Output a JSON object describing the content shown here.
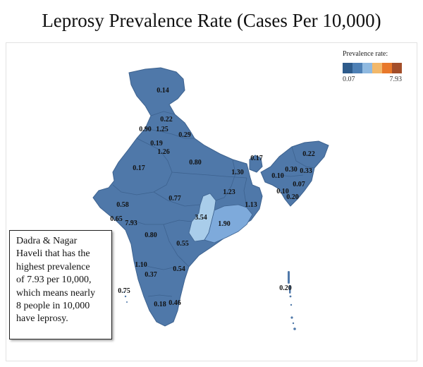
{
  "title": "Leprosy Prevalence Rate (Cases Per 10,000)",
  "legend": {
    "title": "Prevalence rate:",
    "min_label": "0.07",
    "max_label": "7.93",
    "colors": [
      "#2e5b8b",
      "#4e80b5",
      "#8fb9e0",
      "#f2b86a",
      "#e8782a",
      "#a34e2a"
    ]
  },
  "annotation": {
    "lines": [
      "Dadra & Nagar",
      "Haveli that has the",
      "highest prevalence",
      "of 7.93 per 10,000,",
      "which means nearly",
      "8 people in 10,000",
      "have leprosy."
    ]
  },
  "map_colors": {
    "base": "#4f78a9",
    "border": "#3d628f",
    "chhattisgarh": "#a9cdea",
    "odisha": "#7eaadb"
  },
  "regions": [
    {
      "name": "Jammu and Kashmir",
      "value": "0.14"
    },
    {
      "name": "Himachal Pradesh",
      "value": "0.22"
    },
    {
      "name": "Punjab",
      "value": "0.90"
    },
    {
      "name": "Chandigarh",
      "value": "1.25"
    },
    {
      "name": "Uttarakhand",
      "value": "0.29"
    },
    {
      "name": "Haryana",
      "value": "0.19"
    },
    {
      "name": "Delhi",
      "value": "1.26"
    },
    {
      "name": "Rajasthan",
      "value": "0.17"
    },
    {
      "name": "Uttar Pradesh",
      "value": "0.80"
    },
    {
      "name": "Bihar",
      "value": "1.30"
    },
    {
      "name": "Sikkim",
      "value": "0.17"
    },
    {
      "name": "Arunachal Pradesh",
      "value": "0.22"
    },
    {
      "name": "Assam",
      "value": "0.30"
    },
    {
      "name": "Nagaland",
      "value": "0.33"
    },
    {
      "name": "Meghalaya",
      "value": "0.10"
    },
    {
      "name": "Manipur",
      "value": "0.07"
    },
    {
      "name": "Tripura",
      "value": "0.10"
    },
    {
      "name": "Mizoram",
      "value": "0.20"
    },
    {
      "name": "Jharkhand",
      "value": "1.23"
    },
    {
      "name": "West Bengal",
      "value": "1.13"
    },
    {
      "name": "Gujarat",
      "value": "0.58"
    },
    {
      "name": "Madhya Pradesh",
      "value": "0.77"
    },
    {
      "name": "Chhattisgarh",
      "value": "3.54"
    },
    {
      "name": "Odisha",
      "value": "1.90"
    },
    {
      "name": "Daman and Diu",
      "value": "0.65"
    },
    {
      "name": "Dadra and Nagar Haveli",
      "value": "7.93"
    },
    {
      "name": "Maharashtra",
      "value": "0.80"
    },
    {
      "name": "Telangana",
      "value": "0.55"
    },
    {
      "name": "Goa",
      "value": "1.10"
    },
    {
      "name": "Karnataka",
      "value": "0.37"
    },
    {
      "name": "Andhra Pradesh",
      "value": "0.54"
    },
    {
      "name": "Lakshadweep",
      "value": "0.75"
    },
    {
      "name": "Kerala",
      "value": "0.18"
    },
    {
      "name": "Tamil Nadu",
      "value": "0.46"
    },
    {
      "name": "Andaman and Nicobar Islands",
      "value": "0.20"
    }
  ]
}
